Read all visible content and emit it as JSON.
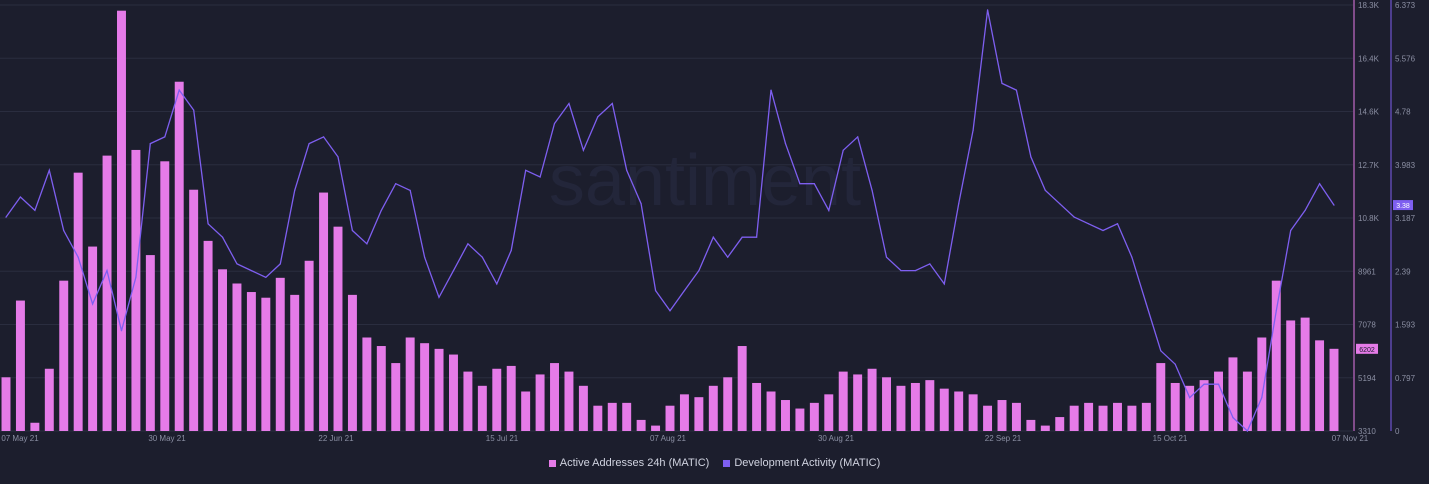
{
  "watermark": "santiment",
  "colors": {
    "background": "#1c1e2d",
    "grid": "#2a2d3f",
    "active_addresses": "#e57be8",
    "dev_activity": "#7e5ff0",
    "axis_text": "#8b8fa3"
  },
  "legend": [
    {
      "label": "Active Addresses 24h (MATIC)",
      "color": "#e57be8"
    },
    {
      "label": "Development Activity (MATIC)",
      "color": "#7e5ff0"
    }
  ],
  "chart_data": {
    "type": "bar+line",
    "x_tick_labels": [
      "07 May 21",
      "30 May 21",
      "22 Jun 21",
      "15 Jul 21",
      "07 Aug 21",
      "30 Aug 21",
      "22 Sep 21",
      "15 Oct 21",
      "07 Nov 21"
    ],
    "x_range": [
      "2021-05-07",
      "2021-11-07"
    ],
    "left_axis": {
      "series": "Active Addresses 24h (MATIC)",
      "tick_labels": [
        "3310",
        "5194",
        "7078",
        "8961",
        "10.8K",
        "12.7K",
        "14.6K",
        "16.4K",
        "18.3K"
      ],
      "range": [
        3310,
        18300
      ],
      "last_value_badge": "6202"
    },
    "right_axis": {
      "series": "Development Activity (MATIC)",
      "tick_labels": [
        "0",
        "0.797",
        "1.593",
        "2.39",
        "3.187",
        "3.983",
        "4.78",
        "5.576",
        "6.373"
      ],
      "range": [
        0,
        6.373
      ],
      "last_value_badge": "3.38"
    },
    "series": [
      {
        "name": "Active Addresses 24h (MATIC)",
        "kind": "bar",
        "points": [
          {
            "x": "2021-05-07",
            "y": 5200
          },
          {
            "x": "2021-05-09",
            "y": 7900
          },
          {
            "x": "2021-05-11",
            "y": 3600
          },
          {
            "x": "2021-05-13",
            "y": 5500
          },
          {
            "x": "2021-05-15",
            "y": 8600
          },
          {
            "x": "2021-05-17",
            "y": 12400
          },
          {
            "x": "2021-05-19",
            "y": 9800
          },
          {
            "x": "2021-05-21",
            "y": 13000
          },
          {
            "x": "2021-05-23",
            "y": 18100
          },
          {
            "x": "2021-05-25",
            "y": 13200
          },
          {
            "x": "2021-05-27",
            "y": 9500
          },
          {
            "x": "2021-05-29",
            "y": 12800
          },
          {
            "x": "2021-05-31",
            "y": 15600
          },
          {
            "x": "2021-06-02",
            "y": 11800
          },
          {
            "x": "2021-06-04",
            "y": 10000
          },
          {
            "x": "2021-06-06",
            "y": 9000
          },
          {
            "x": "2021-06-08",
            "y": 8500
          },
          {
            "x": "2021-06-10",
            "y": 8200
          },
          {
            "x": "2021-06-12",
            "y": 8000
          },
          {
            "x": "2021-06-14",
            "y": 8700
          },
          {
            "x": "2021-06-16",
            "y": 8100
          },
          {
            "x": "2021-06-18",
            "y": 9300
          },
          {
            "x": "2021-06-20",
            "y": 11700
          },
          {
            "x": "2021-06-22",
            "y": 10500
          },
          {
            "x": "2021-06-24",
            "y": 8100
          },
          {
            "x": "2021-06-26",
            "y": 6600
          },
          {
            "x": "2021-06-28",
            "y": 6300
          },
          {
            "x": "2021-06-30",
            "y": 5700
          },
          {
            "x": "2021-07-02",
            "y": 6600
          },
          {
            "x": "2021-07-04",
            "y": 6400
          },
          {
            "x": "2021-07-06",
            "y": 6200
          },
          {
            "x": "2021-07-08",
            "y": 6000
          },
          {
            "x": "2021-07-10",
            "y": 5400
          },
          {
            "x": "2021-07-12",
            "y": 4900
          },
          {
            "x": "2021-07-14",
            "y": 5500
          },
          {
            "x": "2021-07-16",
            "y": 5600
          },
          {
            "x": "2021-07-18",
            "y": 4700
          },
          {
            "x": "2021-07-20",
            "y": 5300
          },
          {
            "x": "2021-07-22",
            "y": 5700
          },
          {
            "x": "2021-07-24",
            "y": 5400
          },
          {
            "x": "2021-07-26",
            "y": 4900
          },
          {
            "x": "2021-07-28",
            "y": 4200
          },
          {
            "x": "2021-07-30",
            "y": 4300
          },
          {
            "x": "2021-08-01",
            "y": 4300
          },
          {
            "x": "2021-08-03",
            "y": 3700
          },
          {
            "x": "2021-08-05",
            "y": 3500
          },
          {
            "x": "2021-08-07",
            "y": 4200
          },
          {
            "x": "2021-08-09",
            "y": 4600
          },
          {
            "x": "2021-08-11",
            "y": 4500
          },
          {
            "x": "2021-08-13",
            "y": 4900
          },
          {
            "x": "2021-08-15",
            "y": 5200
          },
          {
            "x": "2021-08-17",
            "y": 6300
          },
          {
            "x": "2021-08-19",
            "y": 5000
          },
          {
            "x": "2021-08-21",
            "y": 4700
          },
          {
            "x": "2021-08-23",
            "y": 4400
          },
          {
            "x": "2021-08-25",
            "y": 4100
          },
          {
            "x": "2021-08-27",
            "y": 4300
          },
          {
            "x": "2021-08-29",
            "y": 4600
          },
          {
            "x": "2021-08-31",
            "y": 5400
          },
          {
            "x": "2021-09-02",
            "y": 5300
          },
          {
            "x": "2021-09-04",
            "y": 5500
          },
          {
            "x": "2021-09-06",
            "y": 5200
          },
          {
            "x": "2021-09-08",
            "y": 4900
          },
          {
            "x": "2021-09-10",
            "y": 5000
          },
          {
            "x": "2021-09-12",
            "y": 5100
          },
          {
            "x": "2021-09-14",
            "y": 4800
          },
          {
            "x": "2021-09-16",
            "y": 4700
          },
          {
            "x": "2021-09-18",
            "y": 4600
          },
          {
            "x": "2021-09-20",
            "y": 4200
          },
          {
            "x": "2021-09-22",
            "y": 4400
          },
          {
            "x": "2021-09-24",
            "y": 4300
          },
          {
            "x": "2021-09-26",
            "y": 3700
          },
          {
            "x": "2021-09-28",
            "y": 3500
          },
          {
            "x": "2021-09-30",
            "y": 3800
          },
          {
            "x": "2021-10-02",
            "y": 4200
          },
          {
            "x": "2021-10-04",
            "y": 4300
          },
          {
            "x": "2021-10-06",
            "y": 4200
          },
          {
            "x": "2021-10-08",
            "y": 4300
          },
          {
            "x": "2021-10-10",
            "y": 4200
          },
          {
            "x": "2021-10-12",
            "y": 4300
          },
          {
            "x": "2021-10-14",
            "y": 5700
          },
          {
            "x": "2021-10-16",
            "y": 5000
          },
          {
            "x": "2021-10-18",
            "y": 4900
          },
          {
            "x": "2021-10-20",
            "y": 5100
          },
          {
            "x": "2021-10-22",
            "y": 5400
          },
          {
            "x": "2021-10-24",
            "y": 5900
          },
          {
            "x": "2021-10-26",
            "y": 5400
          },
          {
            "x": "2021-10-28",
            "y": 6600
          },
          {
            "x": "2021-10-30",
            "y": 8600
          },
          {
            "x": "2021-11-01",
            "y": 7200
          },
          {
            "x": "2021-11-03",
            "y": 7300
          },
          {
            "x": "2021-11-05",
            "y": 6500
          },
          {
            "x": "2021-11-07",
            "y": 6202
          }
        ]
      },
      {
        "name": "Development Activity (MATIC)",
        "kind": "line",
        "points": [
          {
            "x": "2021-05-07",
            "y": 3.2
          },
          {
            "x": "2021-05-09",
            "y": 3.5
          },
          {
            "x": "2021-05-11",
            "y": 3.3
          },
          {
            "x": "2021-05-13",
            "y": 3.9
          },
          {
            "x": "2021-05-15",
            "y": 3.0
          },
          {
            "x": "2021-05-17",
            "y": 2.6
          },
          {
            "x": "2021-05-19",
            "y": 1.9
          },
          {
            "x": "2021-05-21",
            "y": 2.4
          },
          {
            "x": "2021-05-23",
            "y": 1.5
          },
          {
            "x": "2021-05-25",
            "y": 2.3
          },
          {
            "x": "2021-05-27",
            "y": 4.3
          },
          {
            "x": "2021-05-29",
            "y": 4.4
          },
          {
            "x": "2021-05-31",
            "y": 5.1
          },
          {
            "x": "2021-06-02",
            "y": 4.8
          },
          {
            "x": "2021-06-04",
            "y": 3.1
          },
          {
            "x": "2021-06-06",
            "y": 2.9
          },
          {
            "x": "2021-06-08",
            "y": 2.5
          },
          {
            "x": "2021-06-10",
            "y": 2.4
          },
          {
            "x": "2021-06-12",
            "y": 2.3
          },
          {
            "x": "2021-06-14",
            "y": 2.5
          },
          {
            "x": "2021-06-16",
            "y": 3.6
          },
          {
            "x": "2021-06-18",
            "y": 4.3
          },
          {
            "x": "2021-06-20",
            "y": 4.4
          },
          {
            "x": "2021-06-22",
            "y": 4.1
          },
          {
            "x": "2021-06-24",
            "y": 3.0
          },
          {
            "x": "2021-06-26",
            "y": 2.8
          },
          {
            "x": "2021-06-28",
            "y": 3.3
          },
          {
            "x": "2021-06-30",
            "y": 3.7
          },
          {
            "x": "2021-07-02",
            "y": 3.6
          },
          {
            "x": "2021-07-04",
            "y": 2.6
          },
          {
            "x": "2021-07-06",
            "y": 2.0
          },
          {
            "x": "2021-07-08",
            "y": 2.4
          },
          {
            "x": "2021-07-10",
            "y": 2.8
          },
          {
            "x": "2021-07-12",
            "y": 2.6
          },
          {
            "x": "2021-07-14",
            "y": 2.2
          },
          {
            "x": "2021-07-16",
            "y": 2.7
          },
          {
            "x": "2021-07-18",
            "y": 3.9
          },
          {
            "x": "2021-07-20",
            "y": 3.8
          },
          {
            "x": "2021-07-22",
            "y": 4.6
          },
          {
            "x": "2021-07-24",
            "y": 4.9
          },
          {
            "x": "2021-07-26",
            "y": 4.2
          },
          {
            "x": "2021-07-28",
            "y": 4.7
          },
          {
            "x": "2021-07-30",
            "y": 4.9
          },
          {
            "x": "2021-08-01",
            "y": 3.9
          },
          {
            "x": "2021-08-03",
            "y": 3.4
          },
          {
            "x": "2021-08-05",
            "y": 2.1
          },
          {
            "x": "2021-08-07",
            "y": 1.8
          },
          {
            "x": "2021-08-09",
            "y": 2.1
          },
          {
            "x": "2021-08-11",
            "y": 2.4
          },
          {
            "x": "2021-08-13",
            "y": 2.9
          },
          {
            "x": "2021-08-15",
            "y": 2.6
          },
          {
            "x": "2021-08-17",
            "y": 2.9
          },
          {
            "x": "2021-08-19",
            "y": 2.9
          },
          {
            "x": "2021-08-21",
            "y": 5.1
          },
          {
            "x": "2021-08-23",
            "y": 4.3
          },
          {
            "x": "2021-08-25",
            "y": 3.7
          },
          {
            "x": "2021-08-27",
            "y": 3.7
          },
          {
            "x": "2021-08-29",
            "y": 3.3
          },
          {
            "x": "2021-08-31",
            "y": 4.2
          },
          {
            "x": "2021-09-02",
            "y": 4.4
          },
          {
            "x": "2021-09-04",
            "y": 3.6
          },
          {
            "x": "2021-09-06",
            "y": 2.6
          },
          {
            "x": "2021-09-08",
            "y": 2.4
          },
          {
            "x": "2021-09-10",
            "y": 2.4
          },
          {
            "x": "2021-09-12",
            "y": 2.5
          },
          {
            "x": "2021-09-14",
            "y": 2.2
          },
          {
            "x": "2021-09-16",
            "y": 3.4
          },
          {
            "x": "2021-09-18",
            "y": 4.5
          },
          {
            "x": "2021-09-20",
            "y": 6.3
          },
          {
            "x": "2021-09-22",
            "y": 5.2
          },
          {
            "x": "2021-09-24",
            "y": 5.1
          },
          {
            "x": "2021-09-26",
            "y": 4.1
          },
          {
            "x": "2021-09-28",
            "y": 3.6
          },
          {
            "x": "2021-09-30",
            "y": 3.4
          },
          {
            "x": "2021-10-02",
            "y": 3.2
          },
          {
            "x": "2021-10-04",
            "y": 3.1
          },
          {
            "x": "2021-10-06",
            "y": 3.0
          },
          {
            "x": "2021-10-08",
            "y": 3.1
          },
          {
            "x": "2021-10-10",
            "y": 2.6
          },
          {
            "x": "2021-10-12",
            "y": 1.9
          },
          {
            "x": "2021-10-14",
            "y": 1.2
          },
          {
            "x": "2021-10-16",
            "y": 1.0
          },
          {
            "x": "2021-10-18",
            "y": 0.5
          },
          {
            "x": "2021-10-20",
            "y": 0.7
          },
          {
            "x": "2021-10-22",
            "y": 0.7
          },
          {
            "x": "2021-10-24",
            "y": 0.2
          },
          {
            "x": "2021-10-26",
            "y": 0.0
          },
          {
            "x": "2021-10-28",
            "y": 0.5
          },
          {
            "x": "2021-10-30",
            "y": 1.8
          },
          {
            "x": "2021-11-01",
            "y": 3.0
          },
          {
            "x": "2021-11-03",
            "y": 3.3
          },
          {
            "x": "2021-11-05",
            "y": 3.7
          },
          {
            "x": "2021-11-07",
            "y": 3.38
          }
        ]
      }
    ]
  }
}
